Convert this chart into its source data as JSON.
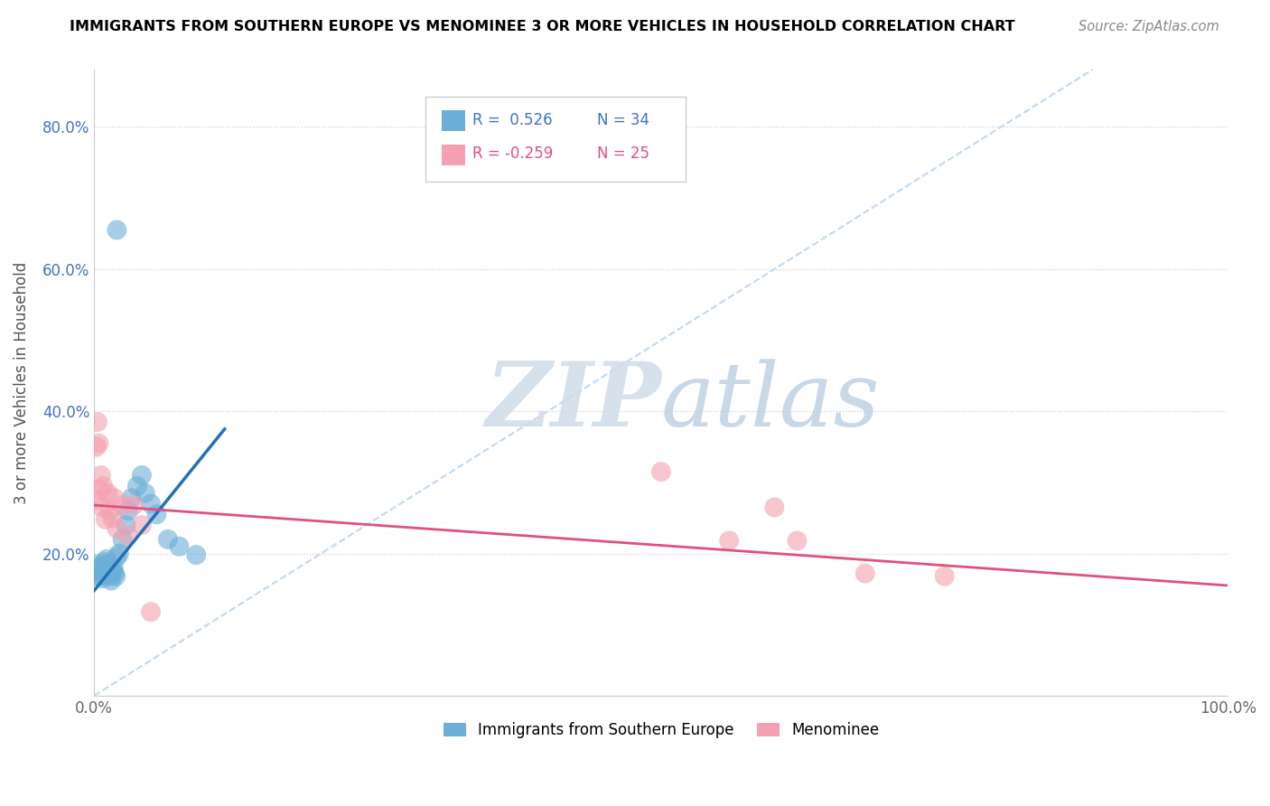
{
  "title": "IMMIGRANTS FROM SOUTHERN EUROPE VS MENOMINEE 3 OR MORE VEHICLES IN HOUSEHOLD CORRELATION CHART",
  "source": "Source: ZipAtlas.com",
  "ylabel": "3 or more Vehicles in Household",
  "xlim": [
    0,
    1.0
  ],
  "ylim": [
    0.0,
    0.88
  ],
  "x_ticks": [
    0.0,
    0.2,
    0.4,
    0.6,
    0.8,
    1.0
  ],
  "x_tick_labels": [
    "0.0%",
    "",
    "",
    "",
    "",
    "100.0%"
  ],
  "y_ticks": [
    0.0,
    0.2,
    0.4,
    0.6,
    0.8
  ],
  "y_tick_labels": [
    "",
    "20.0%",
    "40.0%",
    "60.0%",
    "80.0%"
  ],
  "blue_color": "#6baed6",
  "pink_color": "#f4a0b0",
  "blue_line_color": "#2171b5",
  "pink_line_color": "#e05080",
  "diagonal_color": "#c0d8f0",
  "watermark_zip": "ZIP",
  "watermark_atlas": "atlas",
  "blue_scatter_x": [
    0.001,
    0.002,
    0.003,
    0.004,
    0.005,
    0.006,
    0.007,
    0.008,
    0.009,
    0.01,
    0.011,
    0.012,
    0.013,
    0.014,
    0.015,
    0.016,
    0.017,
    0.018,
    0.019,
    0.02,
    0.022,
    0.025,
    0.028,
    0.03,
    0.033,
    0.038,
    0.042,
    0.045,
    0.05,
    0.055,
    0.065,
    0.075,
    0.09,
    0.02
  ],
  "blue_scatter_y": [
    0.175,
    0.185,
    0.178,
    0.168,
    0.172,
    0.18,
    0.165,
    0.17,
    0.188,
    0.182,
    0.192,
    0.185,
    0.175,
    0.168,
    0.162,
    0.175,
    0.18,
    0.172,
    0.168,
    0.195,
    0.2,
    0.22,
    0.24,
    0.26,
    0.278,
    0.295,
    0.31,
    0.285,
    0.27,
    0.255,
    0.22,
    0.21,
    0.198,
    0.655
  ],
  "pink_scatter_x": [
    0.001,
    0.002,
    0.003,
    0.004,
    0.005,
    0.006,
    0.007,
    0.008,
    0.01,
    0.012,
    0.014,
    0.016,
    0.018,
    0.02,
    0.025,
    0.03,
    0.035,
    0.042,
    0.05,
    0.5,
    0.56,
    0.62,
    0.68,
    0.75,
    0.6
  ],
  "pink_scatter_y": [
    0.275,
    0.35,
    0.385,
    0.355,
    0.29,
    0.31,
    0.265,
    0.295,
    0.248,
    0.285,
    0.26,
    0.25,
    0.278,
    0.235,
    0.268,
    0.225,
    0.268,
    0.24,
    0.118,
    0.315,
    0.218,
    0.218,
    0.172,
    0.168,
    0.265
  ],
  "blue_line_x": [
    0.0,
    0.115
  ],
  "blue_line_y": [
    0.148,
    0.375
  ],
  "pink_line_x": [
    0.0,
    1.0
  ],
  "pink_line_y": [
    0.268,
    0.155
  ],
  "figsize": [
    14.06,
    8.92
  ],
  "dpi": 100
}
